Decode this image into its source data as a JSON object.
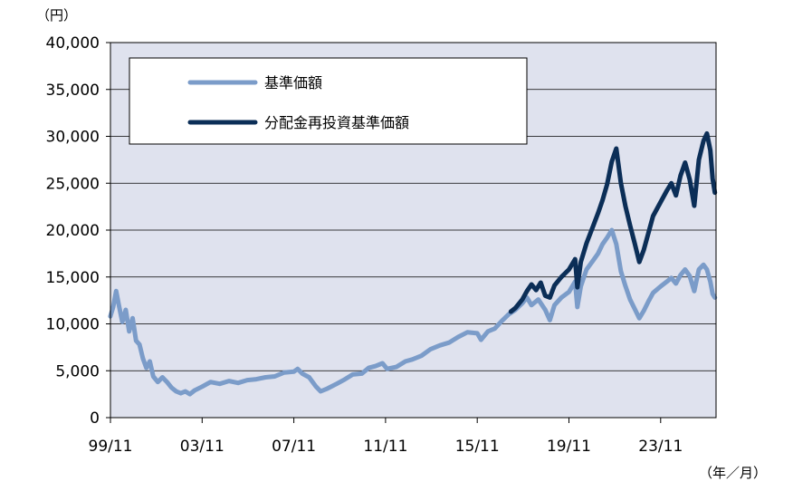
{
  "chart_data": {
    "type": "line",
    "y_unit_label": "（円）",
    "x_unit_label": "（年／月）",
    "ylim": [
      0,
      40000
    ],
    "y_ticks": [
      0,
      5000,
      10000,
      15000,
      20000,
      25000,
      30000,
      35000,
      40000
    ],
    "y_tick_labels": [
      "0",
      "5,000",
      "10,000",
      "15,000",
      "20,000",
      "25,000",
      "30,000",
      "35,000",
      "40,000"
    ],
    "xlim": [
      1999.833,
      2026.25
    ],
    "x_ticks": [
      1999.833,
      2003.833,
      2007.833,
      2011.833,
      2015.833,
      2019.833,
      2023.833
    ],
    "x_tick_labels": [
      "99/11",
      "03/11",
      "07/11",
      "11/11",
      "15/11",
      "19/11",
      "23/11"
    ],
    "grid": "horizontal",
    "legend_placement": "top-left",
    "series": [
      {
        "name": "基準価額",
        "color": "#7b9cc9",
        "points": [
          [
            1999.83,
            10800
          ],
          [
            1999.95,
            11800
          ],
          [
            2000.08,
            13500
          ],
          [
            2000.2,
            12000
          ],
          [
            2000.35,
            10200
          ],
          [
            2000.5,
            11500
          ],
          [
            2000.65,
            9200
          ],
          [
            2000.8,
            10600
          ],
          [
            2000.95,
            8200
          ],
          [
            2001.1,
            7800
          ],
          [
            2001.25,
            6300
          ],
          [
            2001.4,
            5300
          ],
          [
            2001.55,
            6000
          ],
          [
            2001.7,
            4400
          ],
          [
            2001.9,
            3800
          ],
          [
            2002.1,
            4300
          ],
          [
            2002.3,
            3800
          ],
          [
            2002.5,
            3200
          ],
          [
            2002.7,
            2800
          ],
          [
            2002.9,
            2600
          ],
          [
            2003.1,
            2800
          ],
          [
            2003.3,
            2500
          ],
          [
            2003.5,
            2900
          ],
          [
            2003.833,
            3300
          ],
          [
            2004.2,
            3800
          ],
          [
            2004.6,
            3600
          ],
          [
            2005.0,
            3900
          ],
          [
            2005.4,
            3700
          ],
          [
            2005.8,
            4000
          ],
          [
            2006.2,
            4100
          ],
          [
            2006.6,
            4300
          ],
          [
            2007.0,
            4400
          ],
          [
            2007.4,
            4800
          ],
          [
            2007.833,
            4900
          ],
          [
            2008.0,
            5200
          ],
          [
            2008.2,
            4700
          ],
          [
            2008.5,
            4300
          ],
          [
            2008.8,
            3300
          ],
          [
            2009.0,
            2800
          ],
          [
            2009.3,
            3100
          ],
          [
            2009.7,
            3600
          ],
          [
            2010.0,
            4000
          ],
          [
            2010.4,
            4600
          ],
          [
            2010.8,
            4700
          ],
          [
            2011.1,
            5300
          ],
          [
            2011.4,
            5500
          ],
          [
            2011.7,
            5800
          ],
          [
            2011.9,
            5200
          ],
          [
            2012.3,
            5400
          ],
          [
            2012.7,
            6000
          ],
          [
            2013.0,
            6200
          ],
          [
            2013.4,
            6600
          ],
          [
            2013.8,
            7300
          ],
          [
            2014.2,
            7700
          ],
          [
            2014.6,
            8000
          ],
          [
            2015.0,
            8600
          ],
          [
            2015.4,
            9100
          ],
          [
            2015.833,
            9000
          ],
          [
            2016.0,
            8300
          ],
          [
            2016.3,
            9200
          ],
          [
            2016.6,
            9500
          ],
          [
            2016.9,
            10300
          ],
          [
            2017.2,
            11000
          ],
          [
            2017.5,
            11500
          ],
          [
            2017.8,
            12200
          ],
          [
            2018.0,
            12800
          ],
          [
            2018.2,
            12000
          ],
          [
            2018.5,
            12600
          ],
          [
            2018.8,
            11500
          ],
          [
            2019.0,
            10400
          ],
          [
            2019.2,
            12000
          ],
          [
            2019.5,
            12800
          ],
          [
            2019.833,
            13400
          ],
          [
            2020.1,
            14500
          ],
          [
            2020.2,
            11800
          ],
          [
            2020.35,
            14000
          ],
          [
            2020.6,
            15800
          ],
          [
            2020.9,
            16800
          ],
          [
            2021.1,
            17500
          ],
          [
            2021.3,
            18500
          ],
          [
            2021.5,
            19200
          ],
          [
            2021.7,
            20000
          ],
          [
            2021.9,
            18500
          ],
          [
            2022.1,
            15600
          ],
          [
            2022.3,
            14000
          ],
          [
            2022.5,
            12600
          ],
          [
            2022.7,
            11600
          ],
          [
            2022.9,
            10600
          ],
          [
            2023.1,
            11400
          ],
          [
            2023.3,
            12400
          ],
          [
            2023.5,
            13300
          ],
          [
            2023.833,
            14000
          ],
          [
            2024.1,
            14500
          ],
          [
            2024.3,
            14900
          ],
          [
            2024.5,
            14300
          ],
          [
            2024.7,
            15200
          ],
          [
            2024.9,
            15800
          ],
          [
            2025.1,
            15100
          ],
          [
            2025.3,
            13500
          ],
          [
            2025.5,
            15800
          ],
          [
            2025.7,
            16300
          ],
          [
            2025.85,
            15800
          ],
          [
            2026.0,
            14500
          ],
          [
            2026.1,
            13200
          ],
          [
            2026.2,
            12800
          ]
        ]
      },
      {
        "name": "分配金再投資基準価額",
        "color": "#0b2e57",
        "points": [
          [
            2017.3,
            11300
          ],
          [
            2017.5,
            11700
          ],
          [
            2017.8,
            12600
          ],
          [
            2018.0,
            13500
          ],
          [
            2018.2,
            14200
          ],
          [
            2018.4,
            13600
          ],
          [
            2018.6,
            14400
          ],
          [
            2018.8,
            13000
          ],
          [
            2019.0,
            12800
          ],
          [
            2019.2,
            14100
          ],
          [
            2019.5,
            15000
          ],
          [
            2019.833,
            15800
          ],
          [
            2020.1,
            16900
          ],
          [
            2020.2,
            13900
          ],
          [
            2020.35,
            16600
          ],
          [
            2020.6,
            18600
          ],
          [
            2020.9,
            20500
          ],
          [
            2021.1,
            21800
          ],
          [
            2021.3,
            23200
          ],
          [
            2021.5,
            24900
          ],
          [
            2021.7,
            27300
          ],
          [
            2021.9,
            28700
          ],
          [
            2022.1,
            25000
          ],
          [
            2022.3,
            22500
          ],
          [
            2022.5,
            20500
          ],
          [
            2022.7,
            18600
          ],
          [
            2022.9,
            16600
          ],
          [
            2023.1,
            17900
          ],
          [
            2023.3,
            19700
          ],
          [
            2023.5,
            21500
          ],
          [
            2023.833,
            23000
          ],
          [
            2024.1,
            24200
          ],
          [
            2024.3,
            25000
          ],
          [
            2024.5,
            23700
          ],
          [
            2024.7,
            25800
          ],
          [
            2024.9,
            27200
          ],
          [
            2025.1,
            25400
          ],
          [
            2025.3,
            22600
          ],
          [
            2025.5,
            27500
          ],
          [
            2025.7,
            29500
          ],
          [
            2025.85,
            30300
          ],
          [
            2026.0,
            28500
          ],
          [
            2026.1,
            25500
          ],
          [
            2026.2,
            24000
          ]
        ]
      }
    ]
  }
}
